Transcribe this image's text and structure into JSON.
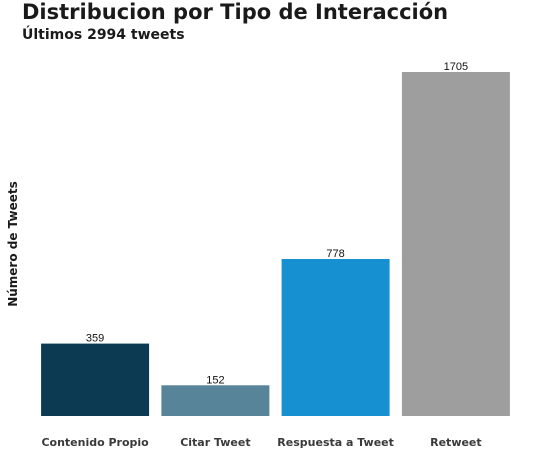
{
  "chart_data": {
    "type": "bar",
    "title": "Distribucion por Tipo de Interacción",
    "subtitle": "Últimos 2994 tweets",
    "xlabel": "",
    "ylabel": "Número de Tweets",
    "categories": [
      "Contenido Propio",
      "Citar Tweet",
      "Respuesta a Tweet",
      "Retweet"
    ],
    "values": [
      359,
      152,
      778,
      1705
    ],
    "colors": [
      "#0b3a52",
      "#58849a",
      "#1690d0",
      "#9e9e9e"
    ],
    "ylim": [
      0,
      1705
    ],
    "grid": false,
    "legend": "none"
  }
}
